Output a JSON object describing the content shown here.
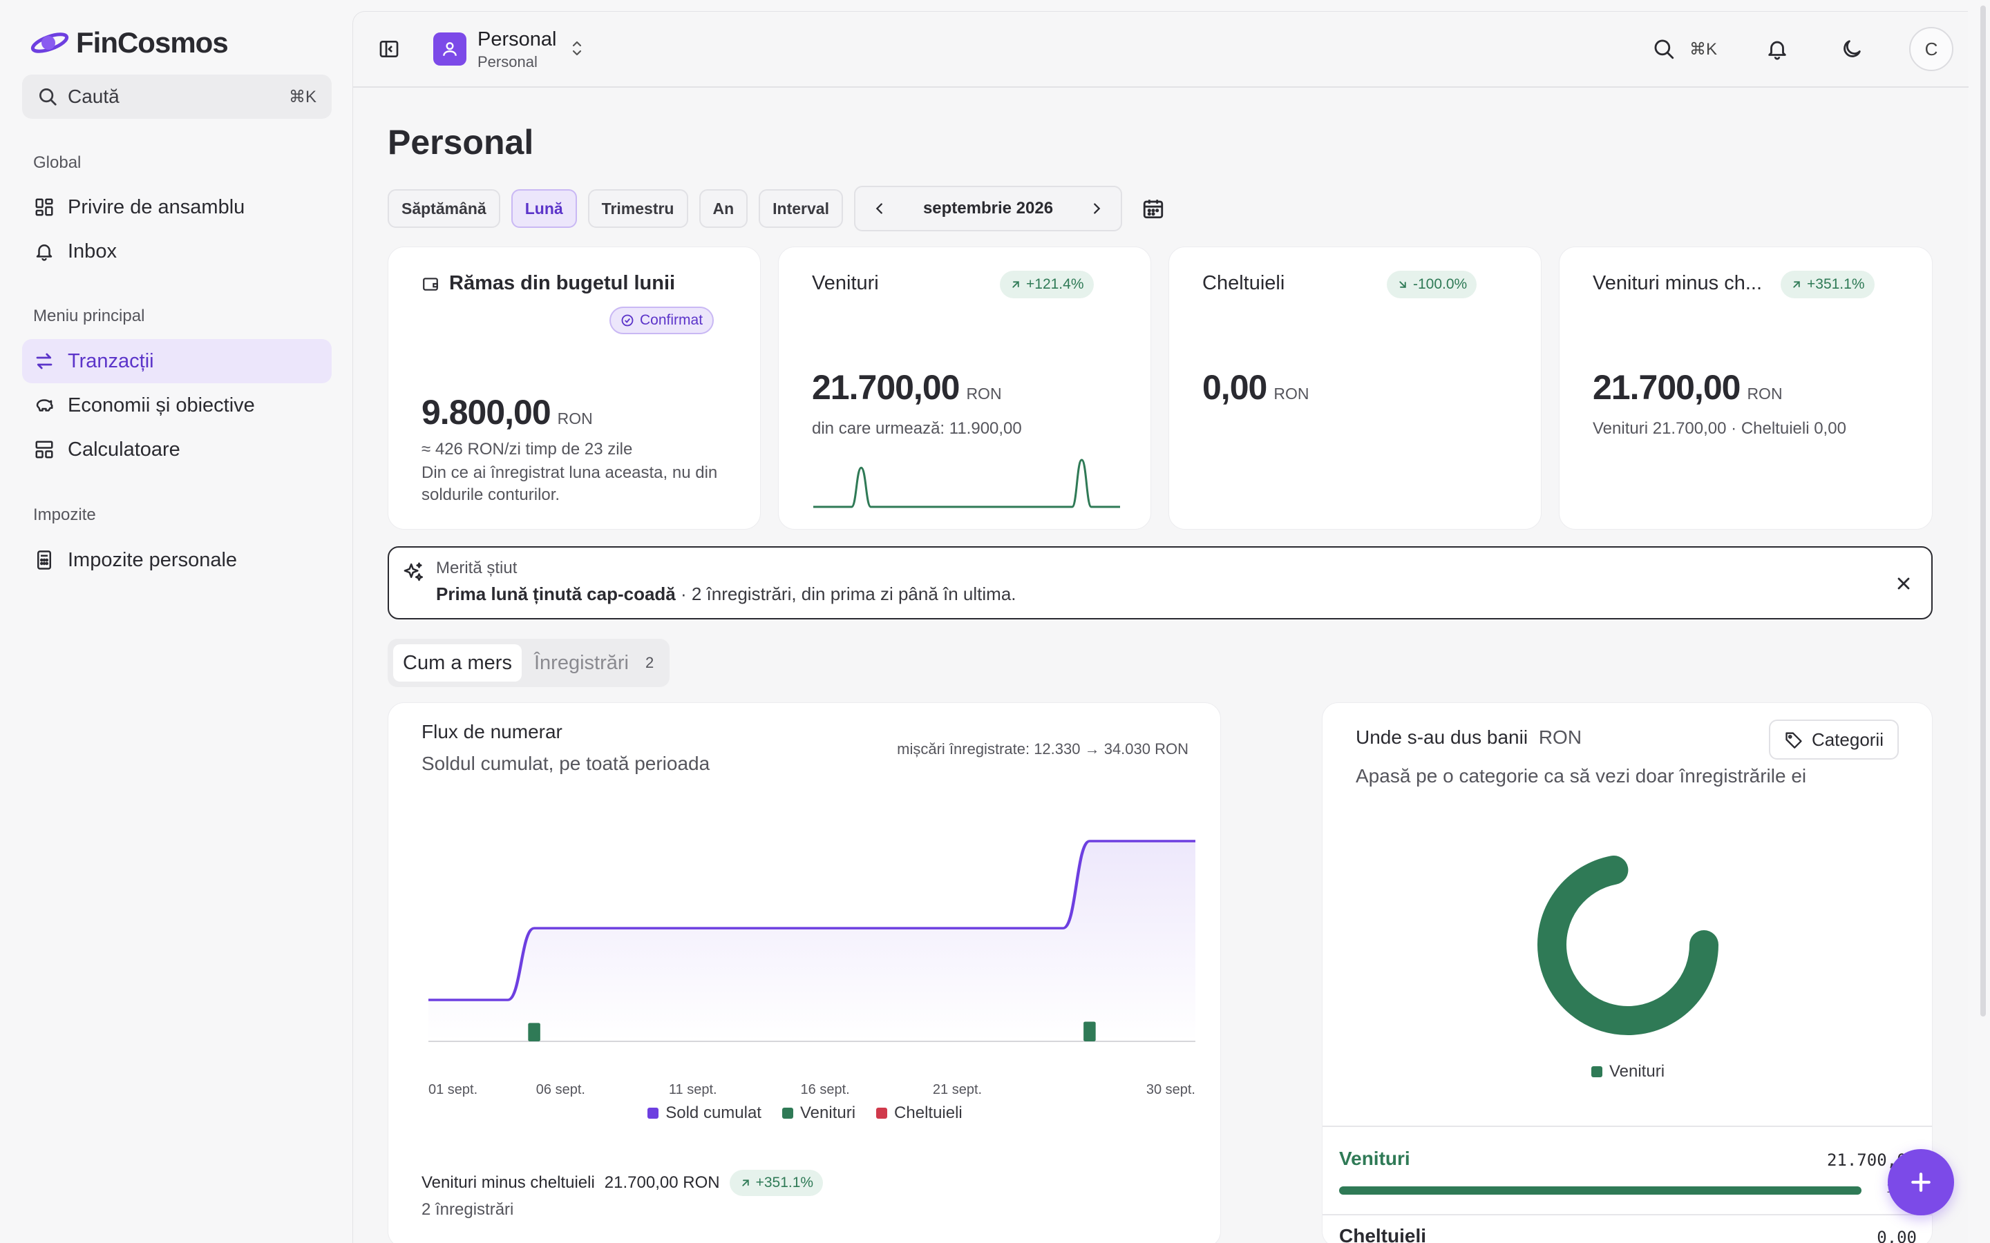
{
  "app": {
    "name": "FinCosmos"
  },
  "sidebar": {
    "search_label": "Caută",
    "search_shortcut": "⌘K",
    "sections": [
      {
        "title": "Global",
        "items": [
          {
            "label": "Privire de ansamblu",
            "icon": "dashboard-icon"
          },
          {
            "label": "Inbox",
            "icon": "bell-icon"
          }
        ]
      },
      {
        "title": "Meniu principal",
        "items": [
          {
            "label": "Tranzacții",
            "icon": "transfer-arrows-icon",
            "active": true
          },
          {
            "label": "Economii și obiective",
            "icon": "piggy-bank-icon"
          },
          {
            "label": "Calculatoare",
            "icon": "calculator-grid-icon"
          }
        ]
      },
      {
        "title": "Impozite",
        "items": [
          {
            "label": "Impozite personale",
            "icon": "receipt-calculator-icon"
          }
        ]
      }
    ]
  },
  "topbar": {
    "workspace_name": "Personal",
    "workspace_sub": "Personal",
    "shortcut": "⌘K",
    "avatar_initial": "C"
  },
  "page": {
    "title": "Personal",
    "periods": [
      "Săptămână",
      "Lună",
      "Trimestru",
      "An",
      "Interval"
    ],
    "active_period": "Lună",
    "current_period": "septembrie 2026"
  },
  "kpis": {
    "budget": {
      "title": "Rămas din bugetul lunii",
      "status": "Confirmat",
      "value": "9.800,00",
      "currency": "RON",
      "line1": "≈ 426 RON/zi timp de 23 zile",
      "line2": "Din ce ai înregistrat luna aceasta, nu din",
      "line3": "soldurile conturilor."
    },
    "income": {
      "title": "Venituri",
      "change": "+121.4%",
      "value": "21.700,00",
      "currency": "RON",
      "sub": "din care urmează: 11.900,00",
      "sparkline": [
        0,
        0,
        0,
        0,
        0,
        1,
        0,
        0,
        0,
        0,
        0,
        0,
        0,
        0,
        0,
        0,
        0,
        0,
        0,
        0,
        0,
        0,
        0,
        0,
        0,
        0,
        0,
        0,
        1.2,
        0,
        0,
        0,
        0
      ]
    },
    "expenses": {
      "title": "Cheltuieli",
      "change": "-100.0%",
      "value": "0,00",
      "currency": "RON"
    },
    "net": {
      "title": "Venituri minus ch...",
      "change": "+351.1%",
      "value": "21.700,00",
      "currency": "RON",
      "sub": "Venituri 21.700,00 · Cheltuieli 0,00"
    }
  },
  "tip": {
    "label": "Merită știut",
    "bold": "Prima lună ținută cap-coadă",
    "rest": " · 2 înregistrări, din prima zi până în ultima."
  },
  "tabs": {
    "first": "Cum a mers",
    "second": "Înregistrări",
    "count": "2"
  },
  "cashflow": {
    "title": "Flux de numerar",
    "subtitle": "Soldul cumulat, pe toată perioada",
    "range_note": "mișcări înregistrate: 12.330 → 34.030 RON",
    "legend": [
      "Sold cumulat",
      "Venituri",
      "Cheltuieli"
    ],
    "footer_label": "Venituri minus cheltuieli",
    "footer_value": "21.700,00 RON",
    "footer_change": "+351.1%",
    "footer_count": "2 înregistrări"
  },
  "chart_data": {
    "type": "line",
    "title": "Flux de numerar",
    "subtitle": "Soldul cumulat, pe toată perioada",
    "x_tick_labels": [
      "01 sept.",
      "06 sept.",
      "11 sept.",
      "16 sept.",
      "21 sept.",
      "30 sept."
    ],
    "x_tick_days": [
      1,
      6,
      11,
      16,
      21,
      30
    ],
    "series": [
      {
        "name": "Sold cumulat",
        "type": "line",
        "color": "#6d3fe0",
        "points": [
          [
            1,
            12330
          ],
          [
            4,
            12330
          ],
          [
            5,
            22130
          ],
          [
            25,
            22130
          ],
          [
            26,
            34030
          ],
          [
            30,
            34030
          ]
        ]
      },
      {
        "name": "Venituri",
        "type": "bar",
        "color": "#2f7a56",
        "points": [
          [
            5,
            9800
          ],
          [
            26,
            11900
          ]
        ]
      },
      {
        "name": "Cheltuieli",
        "type": "bar",
        "color": "#d0394b",
        "points": []
      }
    ],
    "xlim": [
      1,
      30
    ],
    "ylim": [
      0,
      34030
    ],
    "grid": false,
    "legend_position": "bottom"
  },
  "categories": {
    "title": "Unde s-au dus banii",
    "currency": "RON",
    "button": "Categorii",
    "hint": "Apasă pe o categorie ca să vezi doar înregistrările ei",
    "legend": "Venituri",
    "donut": {
      "type": "pie",
      "slices": [
        {
          "name": "Venituri",
          "value": 21700,
          "color": "#2f7a56"
        }
      ]
    },
    "rows": [
      {
        "name": "Venituri",
        "amount": "21.700,00",
        "percent_tail": "10",
        "fill": 1.0,
        "color": "#2f7a56"
      },
      {
        "name": "Cheltuieli",
        "amount": "0,00"
      }
    ]
  },
  "colors": {
    "accent": "#7c4ae8",
    "positive": "#2f7a56",
    "negative": "#d0394b"
  }
}
